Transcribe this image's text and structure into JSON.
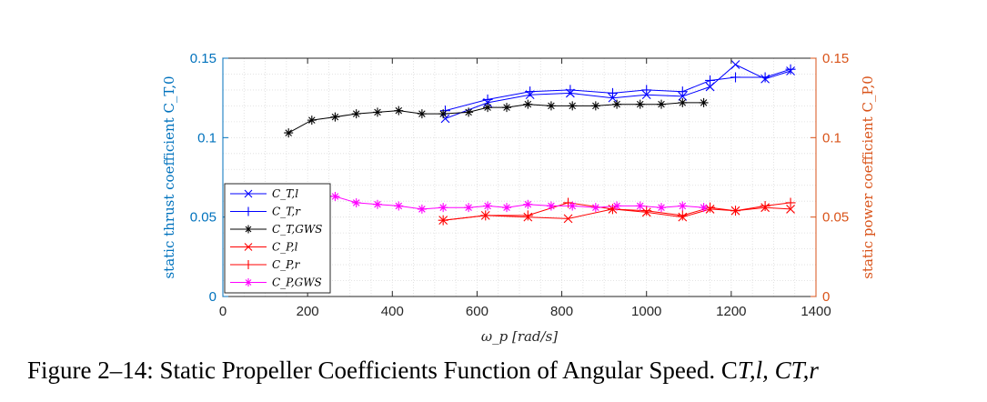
{
  "caption": "Figure 2–14: Static Propeller Coefficients Function of Angular Speed. C",
  "caption_math": "T,l, CT,r",
  "colors": {
    "left_axis": "#0072bd",
    "right_axis": "#d95319",
    "frame": "#262626",
    "grid": "#dcdcdc"
  },
  "chart_data": {
    "type": "line",
    "xlabel": "ω_p [rad/s]",
    "ylabel_left": "static thrust coefficient C_T,0",
    "ylabel_right": "static power coefficient C_P,0",
    "xlim": [
      0,
      1400
    ],
    "ylim_left": [
      0,
      0.15
    ],
    "ylim_right": [
      0,
      0.15
    ],
    "xticks": [
      "0",
      "200",
      "400",
      "600",
      "800",
      "1000",
      "1200",
      "1400"
    ],
    "yticks_left": [
      "0",
      "0.05",
      "0.1",
      "0.15"
    ],
    "yticks_right": [
      "0",
      "0.05",
      "0.1",
      "0.15"
    ],
    "grid": "minor",
    "legend_position": "bottom-left",
    "series": [
      {
        "name": "C_T,l",
        "axis": "left",
        "color": "#0000ff",
        "marker": "x",
        "x": [
          525,
          625,
          725,
          820,
          920,
          1000,
          1085,
          1150,
          1210,
          1280,
          1340
        ],
        "y": [
          0.112,
          0.122,
          0.127,
          0.128,
          0.125,
          0.127,
          0.126,
          0.132,
          0.146,
          0.137,
          0.142
        ]
      },
      {
        "name": "C_T,r",
        "axis": "left",
        "color": "#0000ff",
        "marker": "+",
        "x": [
          525,
          625,
          725,
          820,
          920,
          1000,
          1085,
          1150,
          1210,
          1280,
          1340
        ],
        "y": [
          0.117,
          0.124,
          0.129,
          0.13,
          0.128,
          0.13,
          0.129,
          0.136,
          0.138,
          0.138,
          0.143
        ]
      },
      {
        "name": "C_T,GWS",
        "axis": "left",
        "color": "#000000",
        "marker": "*",
        "x": [
          155,
          210,
          265,
          315,
          365,
          415,
          470,
          520,
          580,
          625,
          670,
          720,
          775,
          825,
          880,
          930,
          985,
          1035,
          1085,
          1135
        ],
        "y": [
          0.103,
          0.111,
          0.113,
          0.115,
          0.116,
          0.117,
          0.115,
          0.115,
          0.116,
          0.119,
          0.119,
          0.121,
          0.12,
          0.12,
          0.12,
          0.121,
          0.121,
          0.121,
          0.122,
          0.122
        ]
      },
      {
        "name": "C_P,l",
        "axis": "right",
        "color": "#ff0000",
        "marker": "x",
        "x": [
          520,
          620,
          720,
          815,
          920,
          1000,
          1085,
          1150,
          1210,
          1280,
          1340
        ],
        "y": [
          0.048,
          0.051,
          0.05,
          0.049,
          0.055,
          0.053,
          0.05,
          0.055,
          0.054,
          0.056,
          0.055
        ]
      },
      {
        "name": "C_P,r",
        "axis": "right",
        "color": "#ff0000",
        "marker": "+",
        "x": [
          520,
          620,
          720,
          815,
          920,
          1000,
          1085,
          1150,
          1210,
          1280,
          1340
        ],
        "y": [
          0.048,
          0.051,
          0.051,
          0.059,
          0.055,
          0.054,
          0.051,
          0.056,
          0.054,
          0.057,
          0.059
        ]
      },
      {
        "name": "C_P,GWS",
        "axis": "right",
        "color": "#ff00ff",
        "marker": "*",
        "x": [
          155,
          210,
          265,
          315,
          365,
          415,
          470,
          520,
          580,
          625,
          670,
          720,
          775,
          825,
          880,
          930,
          985,
          1035,
          1085,
          1135
        ],
        "y": [
          0.066,
          0.064,
          0.063,
          0.059,
          0.058,
          0.057,
          0.055,
          0.056,
          0.056,
          0.057,
          0.056,
          0.058,
          0.057,
          0.057,
          0.056,
          0.057,
          0.057,
          0.056,
          0.057,
          0.056
        ]
      }
    ]
  }
}
